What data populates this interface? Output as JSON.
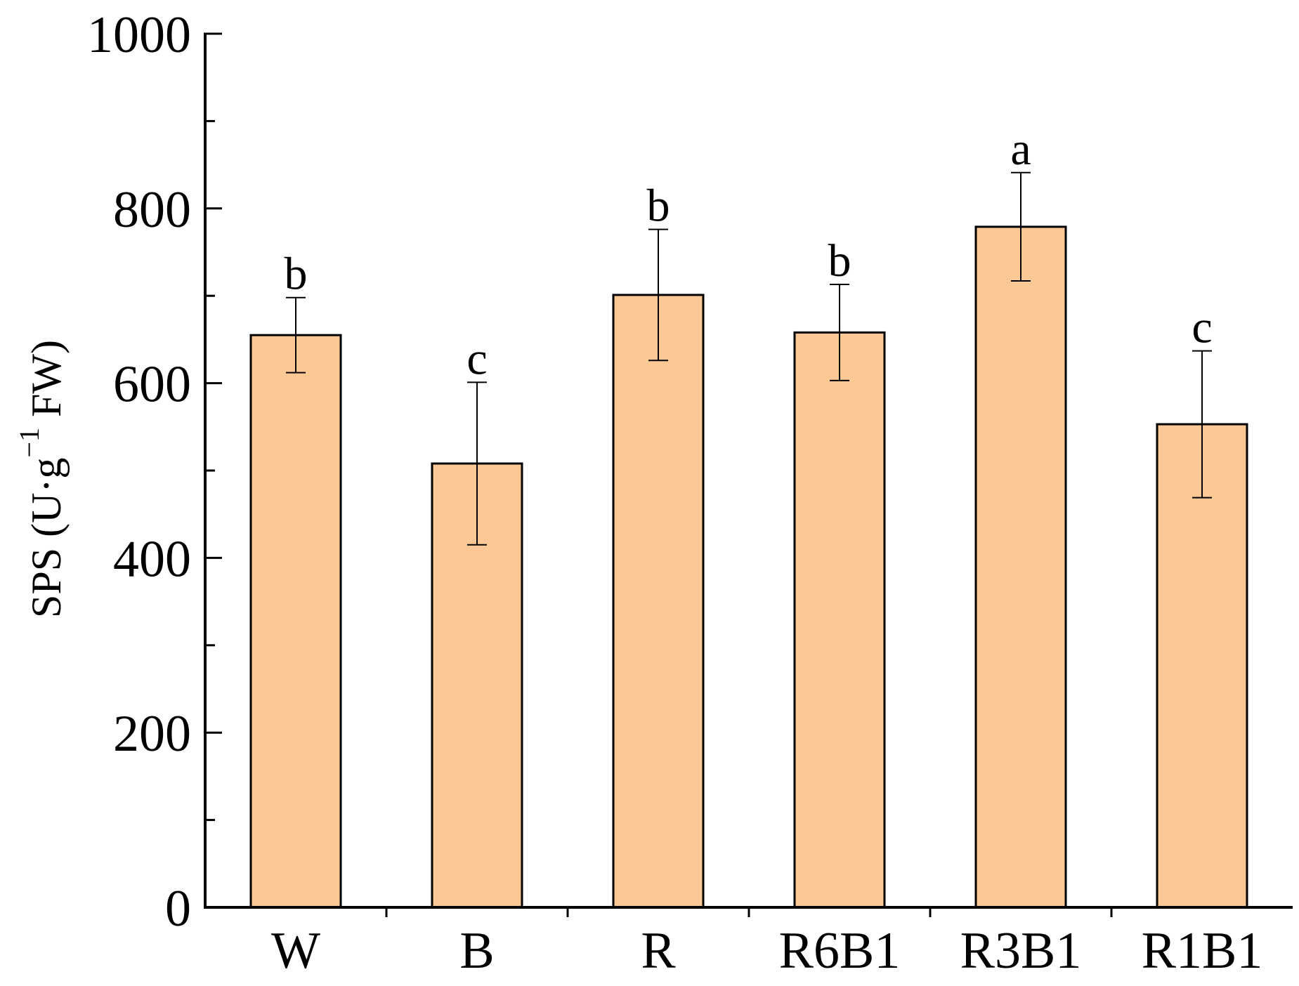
{
  "chart_data": {
    "type": "bar",
    "title": "",
    "xlabel": "",
    "ylabel": {
      "prefix": "SPS (U·g",
      "superscript": "−1",
      "suffix": " FW)"
    },
    "ylim": [
      0,
      1000
    ],
    "yticks": [
      0,
      200,
      400,
      600,
      800,
      1000
    ],
    "yminor_ticks": [
      100,
      300,
      500,
      700,
      900
    ],
    "grid": false,
    "legend": "none",
    "bar_color": "#FCC896",
    "categories": [
      "W",
      "B",
      "R",
      "R6B1",
      "R3B1",
      "R1B1"
    ],
    "values": [
      655,
      508,
      701,
      658,
      779,
      553
    ],
    "errors": [
      43,
      93,
      75,
      55,
      62,
      84
    ],
    "significance": [
      "b",
      "c",
      "b",
      "b",
      "a",
      "c"
    ]
  }
}
